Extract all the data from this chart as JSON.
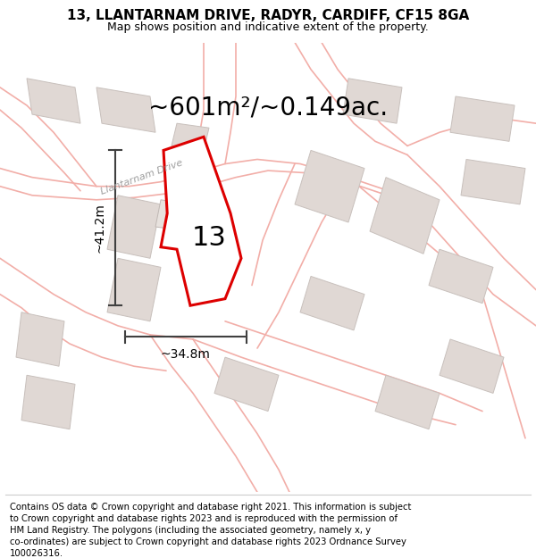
{
  "title": "13, LLANTARNAM DRIVE, RADYR, CARDIFF, CF15 8GA",
  "subtitle": "Map shows position and indicative extent of the property.",
  "area_label": "~601m²/~0.149ac.",
  "number_label": "13",
  "dim_height": "~41.2m",
  "dim_width": "~34.8m",
  "street_label": "Llantarnam Drive",
  "footer_lines": [
    "Contains OS data © Crown copyright and database right 2021. This information is subject",
    "to Crown copyright and database rights 2023 and is reproduced with the permission of",
    "HM Land Registry. The polygons (including the associated geometry, namely x, y",
    "co-ordinates) are subject to Crown copyright and database rights 2023 Ordnance Survey",
    "100026316."
  ],
  "map_bg": "#f7f4f2",
  "road_color": "#f2aea8",
  "road_fill": "#f7f4f2",
  "building_color": "#e0d8d4",
  "building_edge": "#c8c0bc",
  "plot_color": "#ffffff",
  "highlight_color": "#dd0000",
  "dim_color": "#404040",
  "text_color": "#000000",
  "street_color": "#a0a0a0",
  "title_fontsize": 11,
  "subtitle_fontsize": 9,
  "area_fontsize": 20,
  "number_fontsize": 22,
  "dim_fontsize": 10,
  "street_fontsize": 8,
  "footer_fontsize": 7.2
}
